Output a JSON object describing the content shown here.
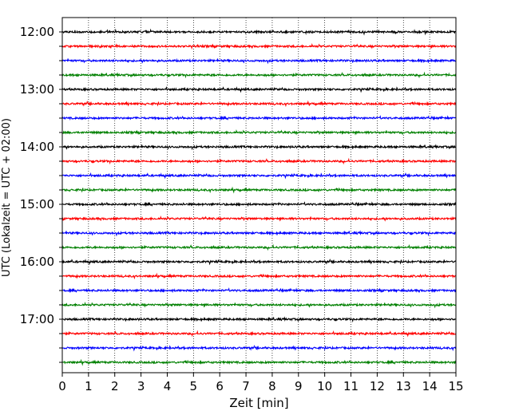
{
  "chart_data": {
    "type": "line",
    "title": "",
    "xlabel": "Zeit  [min]",
    "ylabel": "UTC (Lokalzeit = UTC + 02:00)",
    "xlim": [
      0,
      15
    ],
    "x_ticks": [
      0,
      1,
      2,
      3,
      4,
      5,
      6,
      7,
      8,
      9,
      10,
      11,
      12,
      13,
      14,
      15
    ],
    "y_tick_labels": [
      "12:00",
      "13:00",
      "14:00",
      "15:00",
      "16:00",
      "17:00"
    ],
    "x_grid": "dotted",
    "y_grid": false,
    "legend": false,
    "trace_interval_min": 15,
    "start_time": "12:00",
    "trace_colors": [
      "#000000",
      "#ff0000",
      "#0000ff",
      "#008000"
    ],
    "traces": [
      {
        "start": "12:00"
      },
      {
        "start": "12:15"
      },
      {
        "start": "12:30"
      },
      {
        "start": "12:45"
      },
      {
        "start": "13:00"
      },
      {
        "start": "13:15"
      },
      {
        "start": "13:30"
      },
      {
        "start": "13:45"
      },
      {
        "start": "14:00"
      },
      {
        "start": "14:15"
      },
      {
        "start": "14:30"
      },
      {
        "start": "14:45"
      },
      {
        "start": "15:00"
      },
      {
        "start": "15:15"
      },
      {
        "start": "15:30"
      },
      {
        "start": "15:45"
      },
      {
        "start": "16:00"
      },
      {
        "start": "16:15"
      },
      {
        "start": "16:30"
      },
      {
        "start": "16:45"
      },
      {
        "start": "17:00"
      },
      {
        "start": "17:15"
      },
      {
        "start": "17:30"
      },
      {
        "start": "17:45"
      }
    ]
  }
}
